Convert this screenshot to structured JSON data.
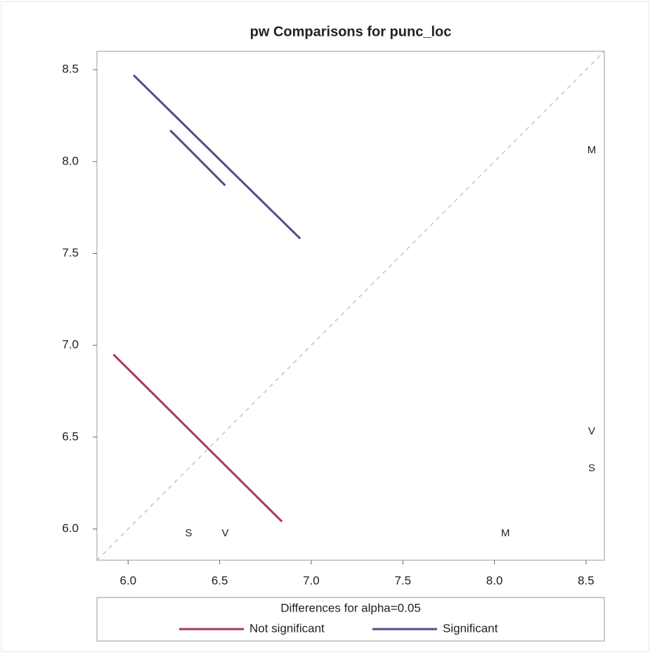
{
  "chart_data": {
    "type": "diffogram",
    "title": "pw Comparisons for punc_loc",
    "xlim": [
      5.83,
      8.6
    ],
    "ylim": [
      5.83,
      8.6
    ],
    "xticks": [
      {
        "value": 6,
        "label": "6.0"
      },
      {
        "value": 6.5,
        "label": "6.5"
      },
      {
        "value": 7,
        "label": "7.0"
      },
      {
        "value": 7.5,
        "label": "7.5"
      },
      {
        "value": 8,
        "label": "8.0"
      },
      {
        "value": 8.5,
        "label": "8.5"
      }
    ],
    "yticks": [
      {
        "value": 6,
        "label": "6.0"
      },
      {
        "value": 6.5,
        "label": "6.5"
      },
      {
        "value": 7,
        "label": "7.0"
      },
      {
        "value": 7.5,
        "label": "7.5"
      },
      {
        "value": 8,
        "label": "8.0"
      },
      {
        "value": 8.5,
        "label": "8.5"
      }
    ],
    "groups": [
      {
        "label": "S",
        "value": 6.33
      },
      {
        "label": "V",
        "value": 6.53
      },
      {
        "label": "M",
        "value": 8.06
      }
    ],
    "legend_title": "Differences for alpha=0.05",
    "series": [
      {
        "name": "Not significant",
        "color": "#a8385c",
        "segments": [
          {
            "x": [
              5.92,
              6.84
            ],
            "y": [
              6.95,
              6.04
            ]
          }
        ]
      },
      {
        "name": "Significant",
        "color": "#4f4f82",
        "segments": [
          {
            "x": [
              6.03,
              6.94
            ],
            "y": [
              8.47,
              7.58
            ]
          },
          {
            "x": [
              6.23,
              6.53
            ],
            "y": [
              8.17,
              7.87
            ]
          }
        ]
      }
    ]
  }
}
